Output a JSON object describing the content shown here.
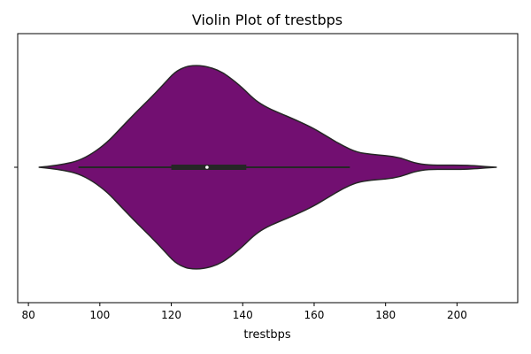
{
  "chart_data": {
    "type": "violin",
    "title": "Violin Plot of trestbps",
    "xlabel": "trestbps",
    "ylabel": "",
    "xlim": [
      77,
      217
    ],
    "xticks": [
      80,
      100,
      120,
      140,
      160,
      180,
      200
    ],
    "colors": {
      "fill": "#720f71",
      "edge": "#262626",
      "box": "#262626",
      "median": "#ffffff"
    },
    "violin": {
      "min_extent": 83,
      "max_extent": 211,
      "density_profile": [
        [
          83,
          0.0
        ],
        [
          86,
          0.01
        ],
        [
          90,
          0.03
        ],
        [
          94,
          0.06
        ],
        [
          98,
          0.13
        ],
        [
          102,
          0.23
        ],
        [
          106,
          0.37
        ],
        [
          110,
          0.51
        ],
        [
          114,
          0.64
        ],
        [
          118,
          0.78
        ],
        [
          121,
          0.89
        ],
        [
          124,
          0.94
        ],
        [
          126,
          0.95
        ],
        [
          128,
          0.95
        ],
        [
          130,
          0.94
        ],
        [
          133,
          0.91
        ],
        [
          136,
          0.85
        ],
        [
          140,
          0.74
        ],
        [
          143,
          0.64
        ],
        [
          146,
          0.57
        ],
        [
          150,
          0.51
        ],
        [
          155,
          0.44
        ],
        [
          160,
          0.36
        ],
        [
          164,
          0.28
        ],
        [
          168,
          0.2
        ],
        [
          172,
          0.14
        ],
        [
          176,
          0.12
        ],
        [
          180,
          0.11
        ],
        [
          184,
          0.09
        ],
        [
          188,
          0.04
        ],
        [
          192,
          0.02
        ],
        [
          197,
          0.02
        ],
        [
          201,
          0.02
        ],
        [
          205,
          0.014
        ],
        [
          208,
          0.007
        ],
        [
          211,
          0.0
        ]
      ],
      "box": {
        "whisker_low": 94,
        "q1": 120,
        "median": 130,
        "q3": 141,
        "whisker_high": 170
      }
    }
  }
}
